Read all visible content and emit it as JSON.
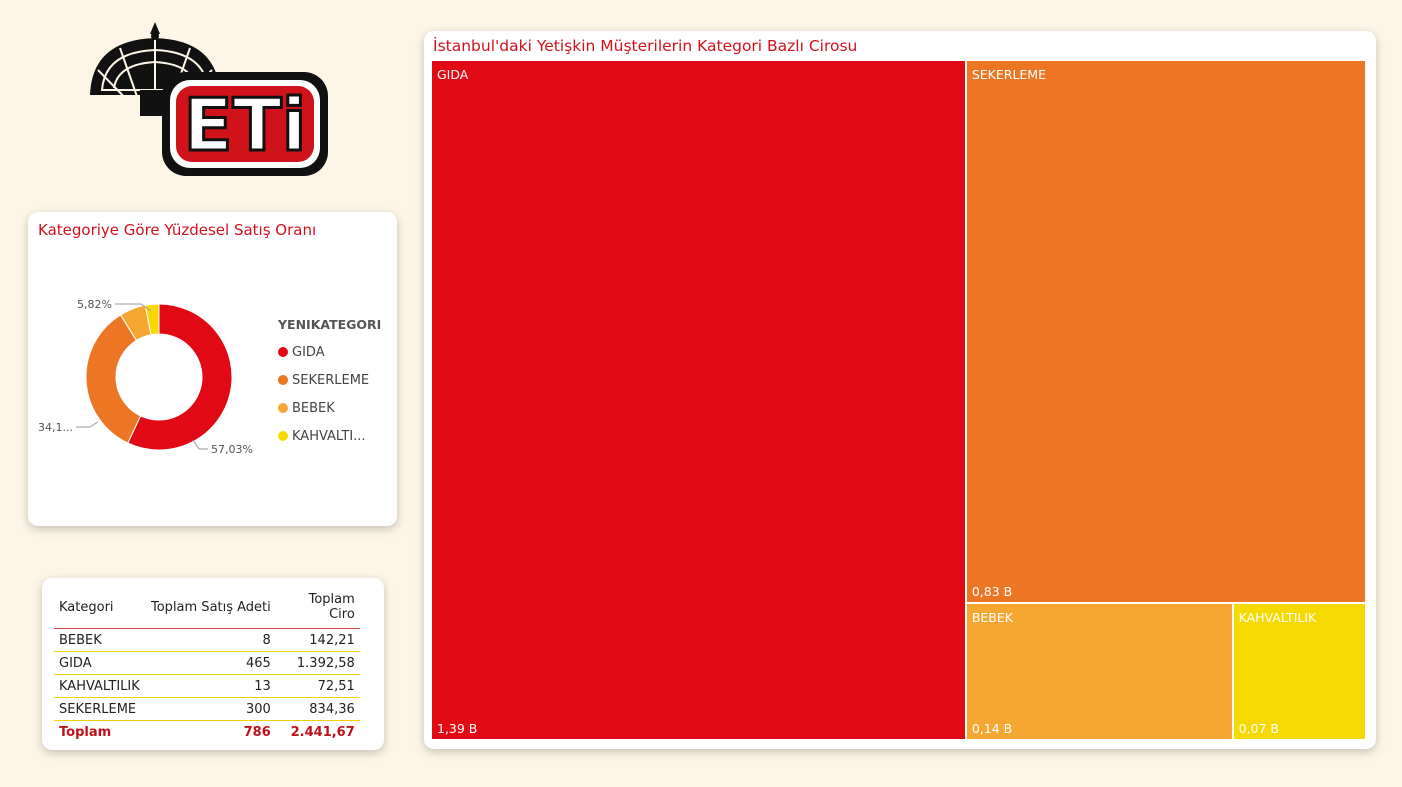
{
  "brand": {
    "logo_text": "ETi"
  },
  "donut": {
    "title": "Kategoriye Göre Yüzdesel Satış Oranı",
    "legend_title": "YENIKATEGORI",
    "legend_items": [
      {
        "label": "GIDA",
        "color": "#e10914"
      },
      {
        "label": "SEKERLEME",
        "color": "#ec7623"
      },
      {
        "label": "BEBEK",
        "color": "#f5a732"
      },
      {
        "label": "KAHVALTI...",
        "color": "#f6d900"
      }
    ],
    "data_labels": {
      "gida": "57,03%",
      "sekerleme": "34,1...",
      "bebek": "5,82%"
    }
  },
  "table": {
    "headers": [
      "Kategori",
      "Toplam Satış Adeti",
      "Toplam Ciro"
    ],
    "rows": [
      {
        "kategori": "BEBEK",
        "adet": "8",
        "ciro": "142,21"
      },
      {
        "kategori": "GIDA",
        "adet": "465",
        "ciro": "1.392,58"
      },
      {
        "kategori": "KAHVALTILIK",
        "adet": "13",
        "ciro": "72,51"
      },
      {
        "kategori": "SEKERLEME",
        "adet": "300",
        "ciro": "834,36"
      }
    ],
    "total": {
      "kategori": "Toplam",
      "adet": "786",
      "ciro": "2.441,67"
    }
  },
  "treemap": {
    "title": "İstanbul'daki Yetişkin Müşterilerin Kategori Bazlı Cirosu"
  },
  "chart_data": [
    {
      "type": "pie",
      "title": "Kategoriye Göre Yüzdesel Satış Oranı",
      "legend_title": "YENIKATEGORI",
      "legend_position": "right",
      "categories": [
        "GIDA",
        "SEKERLEME",
        "BEBEK",
        "KAHVALTILIK"
      ],
      "values": [
        57.03,
        34.15,
        5.82,
        3.0
      ],
      "colors": [
        "#e10914",
        "#ec7623",
        "#f5a732",
        "#f6d900"
      ]
    },
    {
      "type": "table",
      "columns": [
        "Kategori",
        "Toplam Satış Adeti",
        "Toplam Ciro"
      ],
      "rows": [
        [
          "BEBEK",
          8,
          142.21
        ],
        [
          "GIDA",
          465,
          1392.58
        ],
        [
          "KAHVALTILIK",
          13,
          72.51
        ],
        [
          "SEKERLEME",
          300,
          834.36
        ]
      ],
      "total": [
        "Toplam",
        786,
        2441.67
      ]
    },
    {
      "type": "treemap",
      "title": "İstanbul'daki Yetişkin Müşterilerin Kategori Bazlı Cirosu",
      "categories": [
        "GIDA",
        "SEKERLEME",
        "BEBEK",
        "KAHVALTILIK"
      ],
      "values": [
        1.39,
        0.83,
        0.14,
        0.07
      ],
      "value_labels": [
        "1,39 B",
        "0,83 B",
        "0,14 B",
        "0,07 B"
      ],
      "colors": [
        "#e10914",
        "#ec7623",
        "#f5a732",
        "#f6d900"
      ]
    }
  ]
}
